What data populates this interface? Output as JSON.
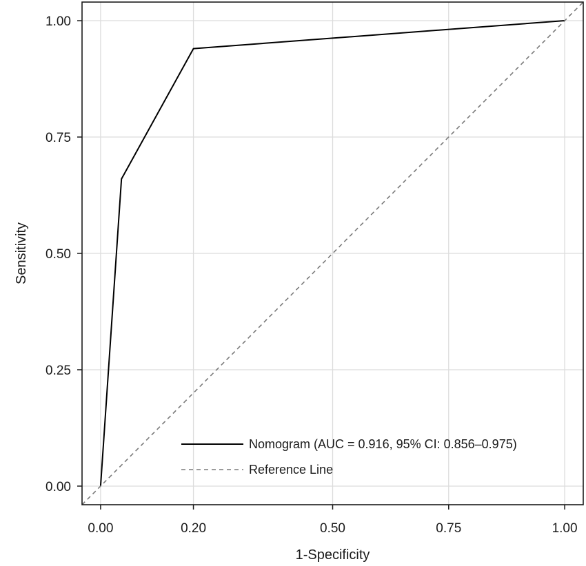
{
  "chart_data": {
    "type": "line",
    "title": "",
    "xlabel": "1-Specificity",
    "ylabel": "Sensitivity",
    "xlim": [
      -0.04,
      1.04
    ],
    "ylim": [
      -0.04,
      1.04
    ],
    "x_ticks": [
      0,
      0.2,
      0.5,
      0.75,
      1.0
    ],
    "x_tick_labels": [
      "0.00",
      "0.20",
      "0.50",
      "0.75",
      "1.00"
    ],
    "y_ticks": [
      0,
      0.25,
      0.5,
      0.75,
      1.0
    ],
    "y_tick_labels": [
      "0.00",
      "0.25",
      "0.50",
      "0.75",
      "1.00"
    ],
    "grid": true,
    "legend_position": "bottom-right",
    "series": [
      {
        "name": "Nomogram (AUC = 0.916, 95% CI: 0.856–0.975)",
        "style": "solid",
        "color": "#000000",
        "x": [
          0.0,
          0.045,
          0.2,
          1.0
        ],
        "y": [
          0.0,
          0.66,
          0.94,
          1.0
        ]
      },
      {
        "name": "Reference Line",
        "style": "dashed",
        "color": "#7a7a7a",
        "x": [
          -0.04,
          1.04
        ],
        "y": [
          -0.04,
          1.04
        ]
      }
    ]
  }
}
